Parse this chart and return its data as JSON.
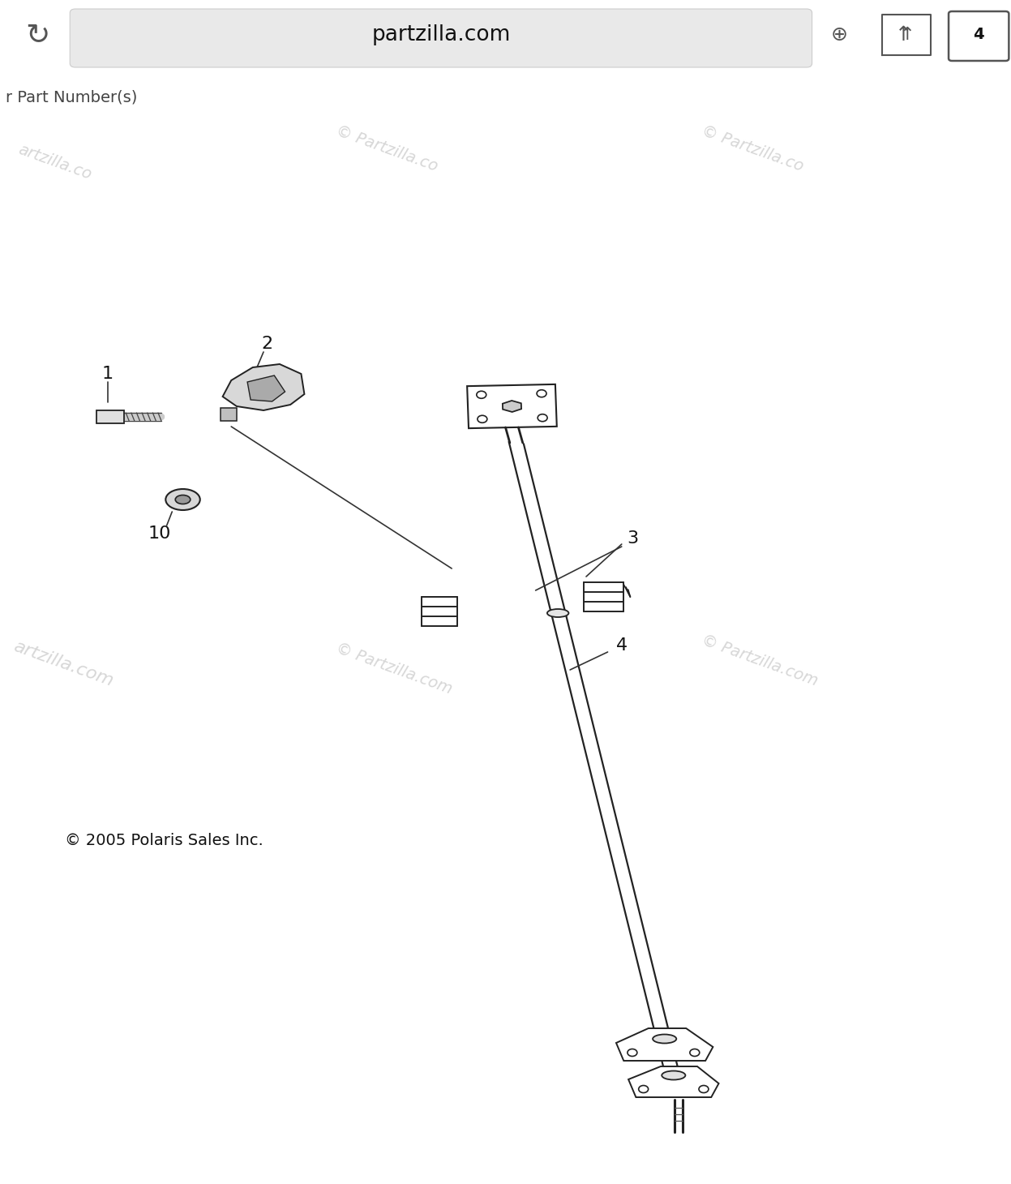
{
  "bg_color": "#ffffff",
  "browser_bar_color": "#e9e9e9",
  "browser_url": "partzilla.com",
  "header_text": "r Part Number(s)",
  "black_bar_color": "#111111",
  "copyright_text": "© 2005 Polaris Sales Inc.",
  "line_color": "#222222",
  "label_color": "#111111",
  "watermark_color": "#d0d0d0",
  "fig_width": 12.47,
  "fig_height": 14.6,
  "dpi": 100
}
